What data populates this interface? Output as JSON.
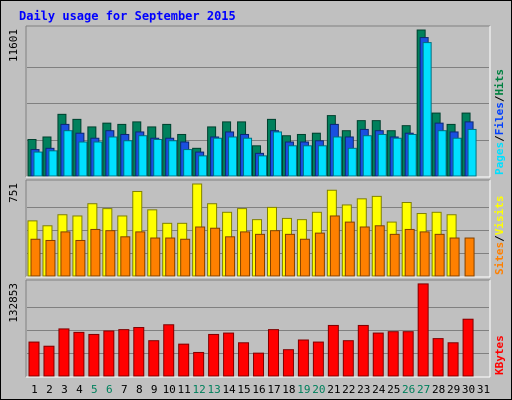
{
  "chart_data": {
    "type": "bar",
    "title": "Daily usage for September 2015",
    "categories": [
      "1",
      "2",
      "3",
      "4",
      "5",
      "6",
      "7",
      "8",
      "9",
      "10",
      "11",
      "12",
      "13",
      "14",
      "15",
      "16",
      "17",
      "18",
      "19",
      "20",
      "21",
      "22",
      "23",
      "24",
      "25",
      "26",
      "27",
      "28",
      "29",
      "30",
      "31"
    ],
    "weekend_days": [
      "5",
      "6",
      "12",
      "13",
      "19",
      "20",
      "26",
      "27"
    ],
    "panels": [
      {
        "id": "hits_files_pages",
        "ymax_label": "11601",
        "ylim": [
          0,
          11601
        ],
        "legend": [
          {
            "label": "Pages",
            "color": "#00e0ff"
          },
          {
            "label": "Files",
            "color": "#0040ff"
          },
          {
            "label": "Hits",
            "color": "#008040"
          }
        ],
        "series": [
          {
            "name": "Hits",
            "color": "#00805c",
            "values": [
              2900,
              3100,
              4900,
              4500,
              3900,
              4200,
              4100,
              4300,
              3900,
              4100,
              3300,
              2200,
              3900,
              4300,
              4300,
              2400,
              4500,
              3200,
              3300,
              3400,
              4800,
              3600,
              4400,
              4400,
              3600,
              4000,
              11600,
              5000,
              4100,
              5000,
              null
            ]
          },
          {
            "name": "Files",
            "color": "#1a4fe0",
            "values": [
              2100,
              2200,
              4100,
              3400,
              3000,
              3600,
              3300,
              3500,
              3000,
              3000,
              2700,
              1900,
              3100,
              3500,
              3300,
              1800,
              3600,
              2700,
              2700,
              2800,
              4100,
              3100,
              3700,
              3600,
              3100,
              3400,
              11000,
              4200,
              3500,
              4300,
              null
            ]
          },
          {
            "name": "Pages",
            "color": "#00e0ff",
            "values": [
              1900,
              2000,
              3600,
              2700,
              2700,
              3100,
              2800,
              3200,
              2900,
              2800,
              2100,
              1600,
              3000,
              3100,
              3000,
              1600,
              3500,
              2400,
              2400,
              2400,
              3100,
              2200,
              3200,
              3300,
              3000,
              3300,
              10600,
              3600,
              3000,
              3700,
              null
            ]
          }
        ]
      },
      {
        "id": "visits_sites",
        "ymax_label": "751",
        "ylim": [
          0,
          751
        ],
        "legend": [
          {
            "label": "Sites",
            "color": "#ff8000"
          },
          {
            "label": "Visits",
            "color": "#ffff00"
          }
        ],
        "series": [
          {
            "name": "Visits",
            "color": "#ffff00",
            "values": [
              450,
              410,
              500,
              490,
              590,
              550,
              490,
              690,
              540,
              430,
              430,
              751,
              590,
              520,
              550,
              460,
              560,
              470,
              460,
              520,
              700,
              580,
              630,
              650,
              440,
              600,
              510,
              520,
              500,
              null,
              null
            ]
          },
          {
            "name": "Sites",
            "color": "#ff8000",
            "values": [
              300,
              290,
              360,
              290,
              380,
              370,
              320,
              360,
              310,
              310,
              300,
              400,
              390,
              320,
              360,
              340,
              370,
              340,
              300,
              350,
              490,
              440,
              400,
              410,
              340,
              380,
              360,
              340,
              310,
              310,
              null
            ]
          }
        ]
      },
      {
        "id": "kbytes",
        "ymax_label": "132853",
        "ylim": [
          0,
          132853
        ],
        "legend": [
          {
            "label": "KBytes",
            "color": "#ff0000"
          }
        ],
        "series": [
          {
            "name": "KBytes",
            "color": "#ff0000",
            "values": [
              49000,
              43000,
              68000,
              63000,
              60000,
              65000,
              67000,
              70000,
              51000,
              74000,
              46000,
              34000,
              60000,
              62000,
              48000,
              33000,
              67000,
              38000,
              52000,
              49000,
              73000,
              51000,
              73000,
              62000,
              64000,
              64000,
              133000,
              54000,
              48000,
              82000,
              null
            ]
          }
        ]
      }
    ],
    "grid": true
  }
}
